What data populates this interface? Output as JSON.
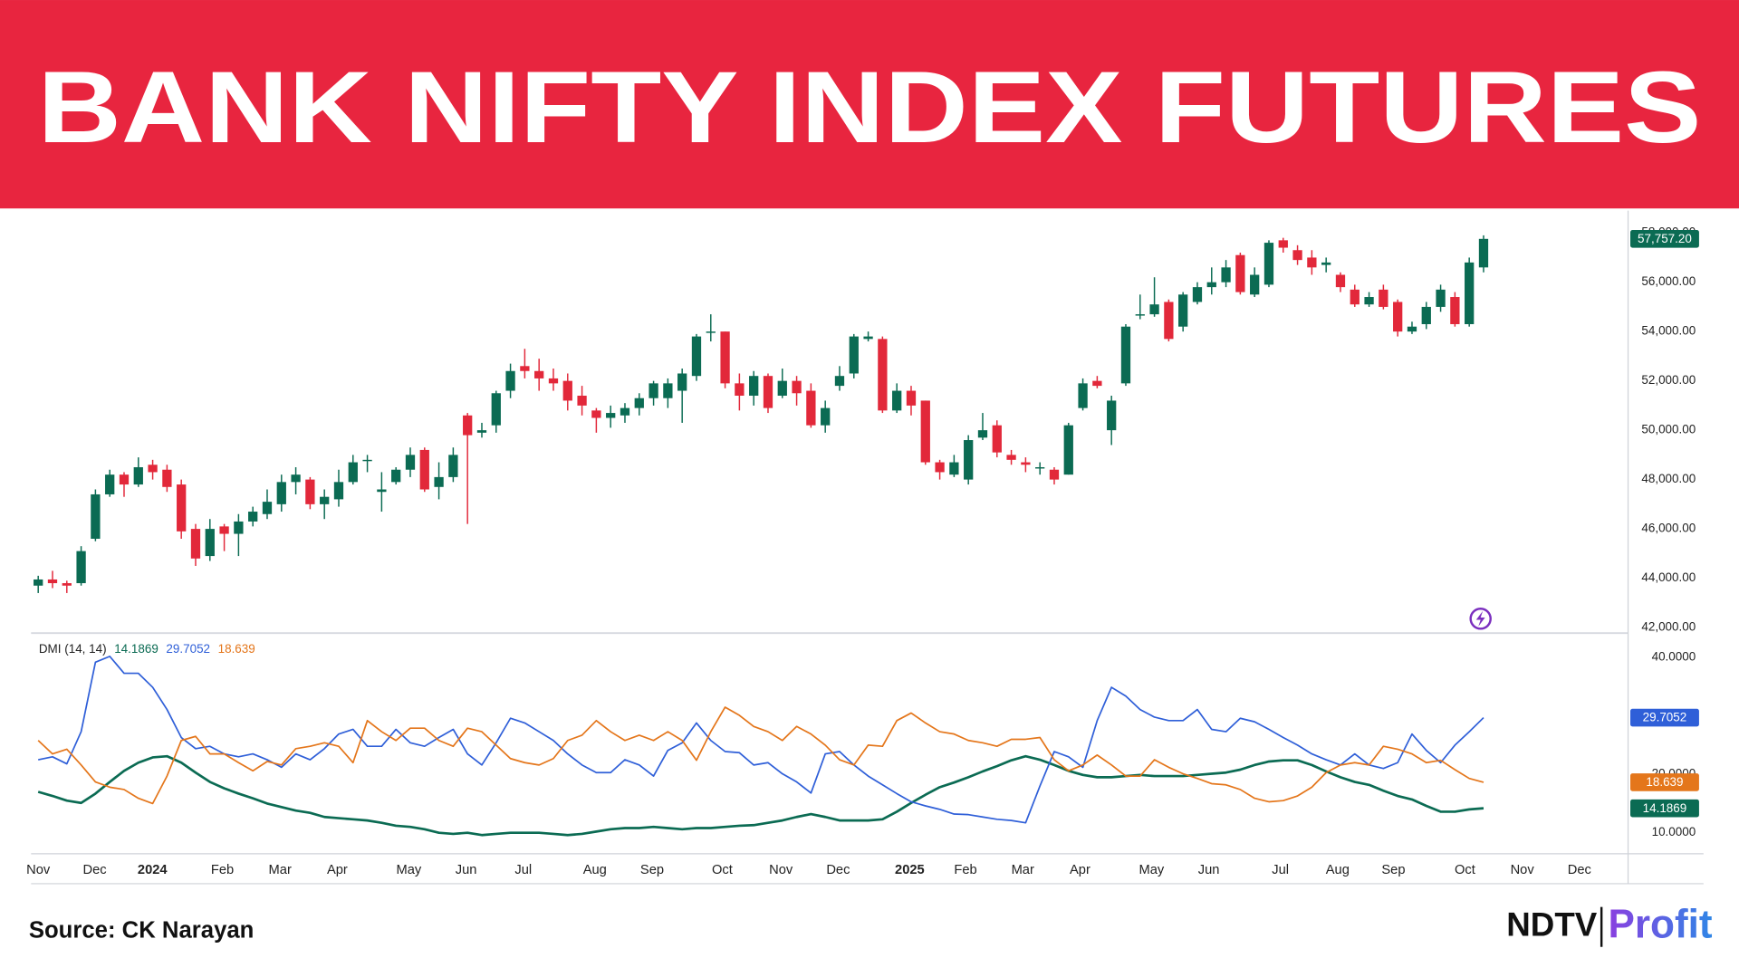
{
  "chart_data": [
    {
      "type": "candlestick",
      "title": "BANK NIFTY INDEX FUTURES",
      "source": "Source: CK Narayan",
      "logo": [
        "NDTV",
        "Profit"
      ],
      "up_color": "#0b6b53",
      "down_color": "#e2283a",
      "grid": true,
      "xlim": [
        -0.5,
        111.1
      ],
      "xticks": [
        {
          "value": 0,
          "label": "Nov"
        },
        {
          "value": 3.95,
          "label": "Dec"
        },
        {
          "value": 7.98,
          "label": "2024"
        },
        {
          "value": 12.87,
          "label": "Feb"
        },
        {
          "value": 16.9,
          "label": "Mar"
        },
        {
          "value": 20.9,
          "label": "Apr"
        },
        {
          "value": 25.9,
          "label": "May"
        },
        {
          "value": 29.9,
          "label": "Jun"
        },
        {
          "value": 33.9,
          "label": "Jul"
        },
        {
          "value": 38.9,
          "label": "Aug"
        },
        {
          "value": 42.9,
          "label": "Sep"
        },
        {
          "value": 47.8,
          "label": "Oct"
        },
        {
          "value": 51.9,
          "label": "Nov"
        },
        {
          "value": 55.9,
          "label": "Dec"
        },
        {
          "value": 60.9,
          "label": "2025"
        },
        {
          "value": 64.8,
          "label": "Feb"
        },
        {
          "value": 68.8,
          "label": "Mar"
        },
        {
          "value": 72.8,
          "label": "Apr"
        },
        {
          "value": 77.8,
          "label": "May"
        },
        {
          "value": 81.8,
          "label": "Jun"
        },
        {
          "value": 86.8,
          "label": "Jul"
        },
        {
          "value": 90.8,
          "label": "Aug"
        },
        {
          "value": 94.7,
          "label": "Sep"
        },
        {
          "value": 99.7,
          "label": "Oct"
        },
        {
          "value": 103.7,
          "label": "Nov"
        },
        {
          "value": 107.7,
          "label": "Dec"
        }
      ],
      "ylim": [
        41820,
        58900
      ],
      "yticks": [
        {
          "value": 42000,
          "label": "42,000.00"
        },
        {
          "value": 44000,
          "label": "44,000.00"
        },
        {
          "value": 46000,
          "label": "46,000.00"
        },
        {
          "value": 48000,
          "label": "48,000.00"
        },
        {
          "value": 50000,
          "label": "50,000.00"
        },
        {
          "value": 52000,
          "label": "52,000.00"
        },
        {
          "value": 54000,
          "label": "54,000.00"
        },
        {
          "value": 56000,
          "label": "56,000.00"
        },
        {
          "value": 58000,
          "label": "58,000.00"
        }
      ],
      "last_price": {
        "value": 57757.2,
        "label": "57,757.20"
      },
      "open": [
        43700,
        43950,
        43800,
        43800,
        45600,
        47400,
        48200,
        47800,
        48600,
        48400,
        47800,
        46000,
        44900,
        46100,
        45800,
        46300,
        46600,
        47000,
        47900,
        48000,
        47000,
        47200,
        47900,
        48750,
        47500,
        47900,
        48400,
        49200,
        47700,
        48100,
        50600,
        49900,
        50200,
        51600,
        52600,
        52400,
        52100,
        52000,
        51400,
        50800,
        50500,
        50600,
        50900,
        51300,
        51300,
        51600,
        52200,
        54000,
        54000,
        51900,
        51400,
        52200,
        51400,
        52000,
        51600,
        50200,
        51800,
        52300,
        53700,
        53700,
        50800,
        51600,
        51200,
        48700,
        48200,
        48000,
        49700,
        50200,
        49000,
        48700,
        48500,
        48400,
        48200,
        50900,
        52000,
        50000,
        51900,
        54700,
        54700,
        55200,
        54200,
        55200,
        55800,
        56000,
        57100,
        55500,
        55900,
        57700,
        57300,
        57000,
        56700,
        56300,
        55700,
        55100,
        55700,
        55200,
        54000,
        54300,
        55000,
        55400,
        54300,
        56600
      ],
      "high": [
        44100,
        44300,
        43900,
        45300,
        47600,
        48400,
        48300,
        48900,
        48800,
        48600,
        48000,
        46200,
        46400,
        46200,
        46600,
        46900,
        47600,
        48200,
        48500,
        48100,
        47600,
        48400,
        49000,
        49000,
        48300,
        48500,
        49300,
        49300,
        48700,
        49300,
        50700,
        50300,
        51600,
        52700,
        53300,
        52900,
        52500,
        52300,
        51800,
        50900,
        51000,
        51100,
        51500,
        52000,
        52100,
        52500,
        53900,
        54700,
        54000,
        52300,
        52400,
        52300,
        52500,
        52200,
        51900,
        51200,
        52600,
        53900,
        54000,
        53800,
        51900,
        51800,
        51200,
        48800,
        49000,
        49800,
        50700,
        50400,
        49200,
        48900,
        48700,
        48500,
        50300,
        52100,
        52200,
        51400,
        54300,
        55500,
        56200,
        55300,
        55600,
        56000,
        56600,
        56900,
        57200,
        56600,
        57700,
        57800,
        57500,
        57300,
        57000,
        56400,
        55900,
        55600,
        55900,
        55300,
        54400,
        55200,
        55900,
        55600,
        57000,
        57900
      ],
      "low": [
        43400,
        43600,
        43400,
        43700,
        45500,
        47300,
        47300,
        47700,
        48000,
        47500,
        45600,
        44500,
        44700,
        45100,
        44900,
        46100,
        46400,
        46700,
        47400,
        46800,
        46400,
        46900,
        47800,
        48300,
        46700,
        47800,
        48100,
        47500,
        47200,
        47900,
        46200,
        49700,
        49900,
        51300,
        52100,
        51600,
        51600,
        50800,
        50600,
        49900,
        50100,
        50300,
        50600,
        51000,
        50900,
        50300,
        52000,
        53600,
        51700,
        50800,
        51000,
        50700,
        51300,
        51000,
        50100,
        49900,
        51600,
        52100,
        53600,
        50700,
        50700,
        50600,
        48600,
        48000,
        48100,
        47800,
        49600,
        48900,
        48600,
        48300,
        48200,
        47800,
        48200,
        50800,
        51700,
        49400,
        51800,
        54500,
        54600,
        53600,
        54000,
        55100,
        55500,
        55800,
        55500,
        55400,
        55800,
        57200,
        56700,
        56300,
        56400,
        55600,
        55000,
        55000,
        54900,
        53800,
        53900,
        54100,
        54800,
        54200,
        54200,
        56400
      ],
      "close": [
        43950,
        43800,
        43700,
        45100,
        47400,
        48200,
        47800,
        48500,
        48300,
        47700,
        45900,
        44800,
        46000,
        45800,
        46300,
        46700,
        47100,
        47900,
        48200,
        47000,
        47300,
        47900,
        48700,
        48800,
        47600,
        48400,
        49000,
        47600,
        48100,
        49000,
        49800,
        50000,
        51500,
        52400,
        52400,
        52100,
        51900,
        51200,
        51000,
        50500,
        50700,
        50900,
        51300,
        51900,
        51900,
        52300,
        53800,
        54000,
        51900,
        51400,
        52200,
        50900,
        52000,
        51500,
        50200,
        50900,
        52200,
        53800,
        53800,
        50800,
        51600,
        51000,
        48700,
        48300,
        48700,
        49600,
        50000,
        49100,
        48800,
        48600,
        48500,
        48000,
        50200,
        51900,
        51800,
        51200,
        54200,
        54700,
        55100,
        53700,
        55500,
        55800,
        56000,
        56600,
        55600,
        56300,
        57600,
        57400,
        56900,
        56600,
        56800,
        55800,
        55100,
        55400,
        55000,
        54000,
        54200,
        55000,
        55700,
        54300,
        56800,
        57757.2
      ]
    },
    {
      "type": "line",
      "label": "DMI (14, 14)",
      "grid": true,
      "ylim": [
        6.4,
        43.8
      ],
      "yticks": [
        {
          "value": 10,
          "label": "10.0000"
        },
        {
          "value": 20,
          "label": "20.0000"
        },
        {
          "value": 40,
          "label": "40.0000"
        }
      ],
      "series": [
        {
          "color": "#0b6b53",
          "last_value": 14.1869,
          "values": [
            17.0,
            16.3,
            15.5,
            15.1,
            16.7,
            18.7,
            20.6,
            22.0,
            22.9,
            23.1,
            22.0,
            20.3,
            18.7,
            17.6,
            16.7,
            15.9,
            15.0,
            14.4,
            13.8,
            13.4,
            12.7,
            12.5,
            12.3,
            12.1,
            11.7,
            11.2,
            11.0,
            10.6,
            10.0,
            9.8,
            10.0,
            9.6,
            9.8,
            10.0,
            10.0,
            10.0,
            9.8,
            9.6,
            9.8,
            10.2,
            10.6,
            10.8,
            10.8,
            11.0,
            10.8,
            10.6,
            10.8,
            10.8,
            11.0,
            11.2,
            11.3,
            11.7,
            12.1,
            12.7,
            13.2,
            12.7,
            12.1,
            12.1,
            12.1,
            12.3,
            13.6,
            15.1,
            16.5,
            17.8,
            18.6,
            19.5,
            20.5,
            21.4,
            22.4,
            23.1,
            22.5,
            21.6,
            20.6,
            19.9,
            19.5,
            19.5,
            19.7,
            19.9,
            19.7,
            19.7,
            19.7,
            19.9,
            20.1,
            20.3,
            20.8,
            21.6,
            22.2,
            22.4,
            22.4,
            21.6,
            20.5,
            19.5,
            18.7,
            18.2,
            17.2,
            16.3,
            15.7,
            14.6,
            13.6,
            13.6,
            14.0,
            14.1869
          ]
        },
        {
          "color": "#2f5fd8",
          "last_value": 29.7052,
          "values": [
            22.5,
            23.0,
            21.8,
            27.3,
            39.2,
            40.2,
            37.3,
            37.3,
            34.9,
            31.1,
            26.3,
            24.4,
            24.8,
            23.5,
            23.0,
            23.5,
            22.5,
            21.2,
            23.5,
            22.5,
            24.4,
            26.9,
            27.7,
            24.8,
            24.8,
            27.7,
            25.4,
            24.8,
            26.3,
            27.7,
            23.5,
            21.6,
            25.4,
            29.6,
            28.8,
            27.3,
            25.8,
            23.5,
            21.6,
            20.3,
            20.3,
            22.5,
            21.6,
            19.7,
            24.1,
            25.4,
            28.8,
            25.8,
            23.9,
            23.7,
            21.6,
            22.0,
            20.1,
            18.7,
            16.8,
            23.5,
            23.9,
            21.6,
            19.7,
            18.2,
            16.7,
            15.3,
            14.6,
            14.0,
            13.2,
            13.1,
            12.7,
            12.3,
            12.1,
            11.7,
            18.0,
            23.9,
            23.0,
            21.2,
            29.2,
            34.9,
            33.4,
            31.1,
            29.8,
            29.2,
            29.2,
            31.1,
            27.7,
            27.3,
            29.6,
            29.0,
            27.7,
            26.3,
            25.0,
            23.5,
            22.5,
            21.6,
            23.5,
            21.6,
            21.0,
            22.0,
            26.9,
            24.1,
            22.0,
            25.0,
            27.3,
            29.7052
          ]
        },
        {
          "color": "#e4761b",
          "last_value": 18.639,
          "values": [
            25.8,
            23.5,
            24.3,
            21.6,
            18.7,
            17.8,
            17.4,
            15.9,
            15.0,
            19.7,
            25.8,
            26.5,
            23.5,
            23.5,
            22.0,
            20.6,
            22.2,
            21.6,
            24.4,
            24.8,
            25.4,
            24.8,
            22.0,
            29.2,
            27.3,
            25.8,
            27.9,
            27.9,
            25.8,
            24.8,
            27.9,
            27.3,
            25.0,
            22.7,
            22.0,
            21.6,
            22.7,
            25.8,
            26.7,
            29.2,
            27.3,
            25.8,
            26.7,
            25.8,
            27.3,
            25.8,
            22.4,
            27.3,
            31.5,
            30.1,
            28.2,
            27.3,
            25.8,
            28.2,
            26.9,
            25.0,
            22.5,
            21.6,
            25.0,
            24.8,
            29.2,
            30.5,
            28.8,
            27.3,
            26.9,
            25.8,
            25.4,
            24.8,
            26.0,
            26.0,
            26.3,
            22.5,
            20.6,
            21.6,
            23.3,
            21.6,
            19.7,
            19.7,
            22.5,
            21.2,
            20.1,
            19.3,
            18.4,
            18.2,
            17.4,
            15.9,
            15.3,
            15.5,
            16.3,
            17.8,
            20.3,
            21.6,
            22.0,
            21.6,
            24.8,
            24.3,
            23.5,
            22.0,
            22.4,
            20.8,
            19.3,
            18.639
          ]
        }
      ]
    }
  ]
}
